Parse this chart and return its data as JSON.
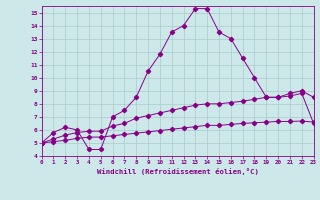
{
  "xlabel": "Windchill (Refroidissement éolien,°C)",
  "bg_color": "#cce8e8",
  "line_color": "#880088",
  "grid_color": "#aacccc",
  "xlim": [
    0,
    23
  ],
  "ylim": [
    4,
    15.5
  ],
  "xticks": [
    0,
    1,
    2,
    3,
    4,
    5,
    6,
    7,
    8,
    9,
    10,
    11,
    12,
    13,
    14,
    15,
    16,
    17,
    18,
    19,
    20,
    21,
    22,
    23
  ],
  "yticks": [
    4,
    5,
    6,
    7,
    8,
    9,
    10,
    11,
    12,
    13,
    14,
    15
  ],
  "series1_x": [
    0,
    1,
    2,
    3,
    4,
    5,
    6,
    7,
    8,
    9,
    10,
    11,
    12,
    13,
    14,
    15,
    16,
    17,
    18,
    19,
    20,
    21,
    22,
    23
  ],
  "series1_y": [
    5.0,
    5.8,
    6.2,
    6.0,
    4.5,
    4.5,
    7.0,
    7.5,
    8.5,
    10.5,
    11.8,
    13.5,
    14.0,
    15.3,
    15.3,
    13.5,
    13.0,
    11.5,
    10.0,
    8.5,
    8.5,
    8.8,
    9.0,
    8.5
  ],
  "series2_x": [
    0,
    1,
    2,
    3,
    4,
    5,
    6,
    7,
    8,
    9,
    10,
    11,
    12,
    13,
    14,
    15,
    16,
    17,
    18,
    19,
    20,
    21,
    22,
    23
  ],
  "series2_y": [
    5.0,
    5.3,
    5.6,
    5.8,
    5.9,
    5.9,
    6.3,
    6.5,
    6.9,
    7.1,
    7.3,
    7.5,
    7.7,
    7.9,
    8.0,
    8.0,
    8.1,
    8.2,
    8.35,
    8.5,
    8.5,
    8.6,
    8.8,
    6.5
  ],
  "series3_x": [
    0,
    1,
    2,
    3,
    4,
    5,
    6,
    7,
    8,
    9,
    10,
    11,
    12,
    13,
    14,
    15,
    16,
    17,
    18,
    19,
    20,
    21,
    22,
    23
  ],
  "series3_y": [
    5.0,
    5.1,
    5.2,
    5.35,
    5.45,
    5.45,
    5.55,
    5.65,
    5.75,
    5.85,
    5.95,
    6.05,
    6.15,
    6.25,
    6.35,
    6.35,
    6.42,
    6.5,
    6.55,
    6.6,
    6.65,
    6.65,
    6.68,
    6.6
  ]
}
